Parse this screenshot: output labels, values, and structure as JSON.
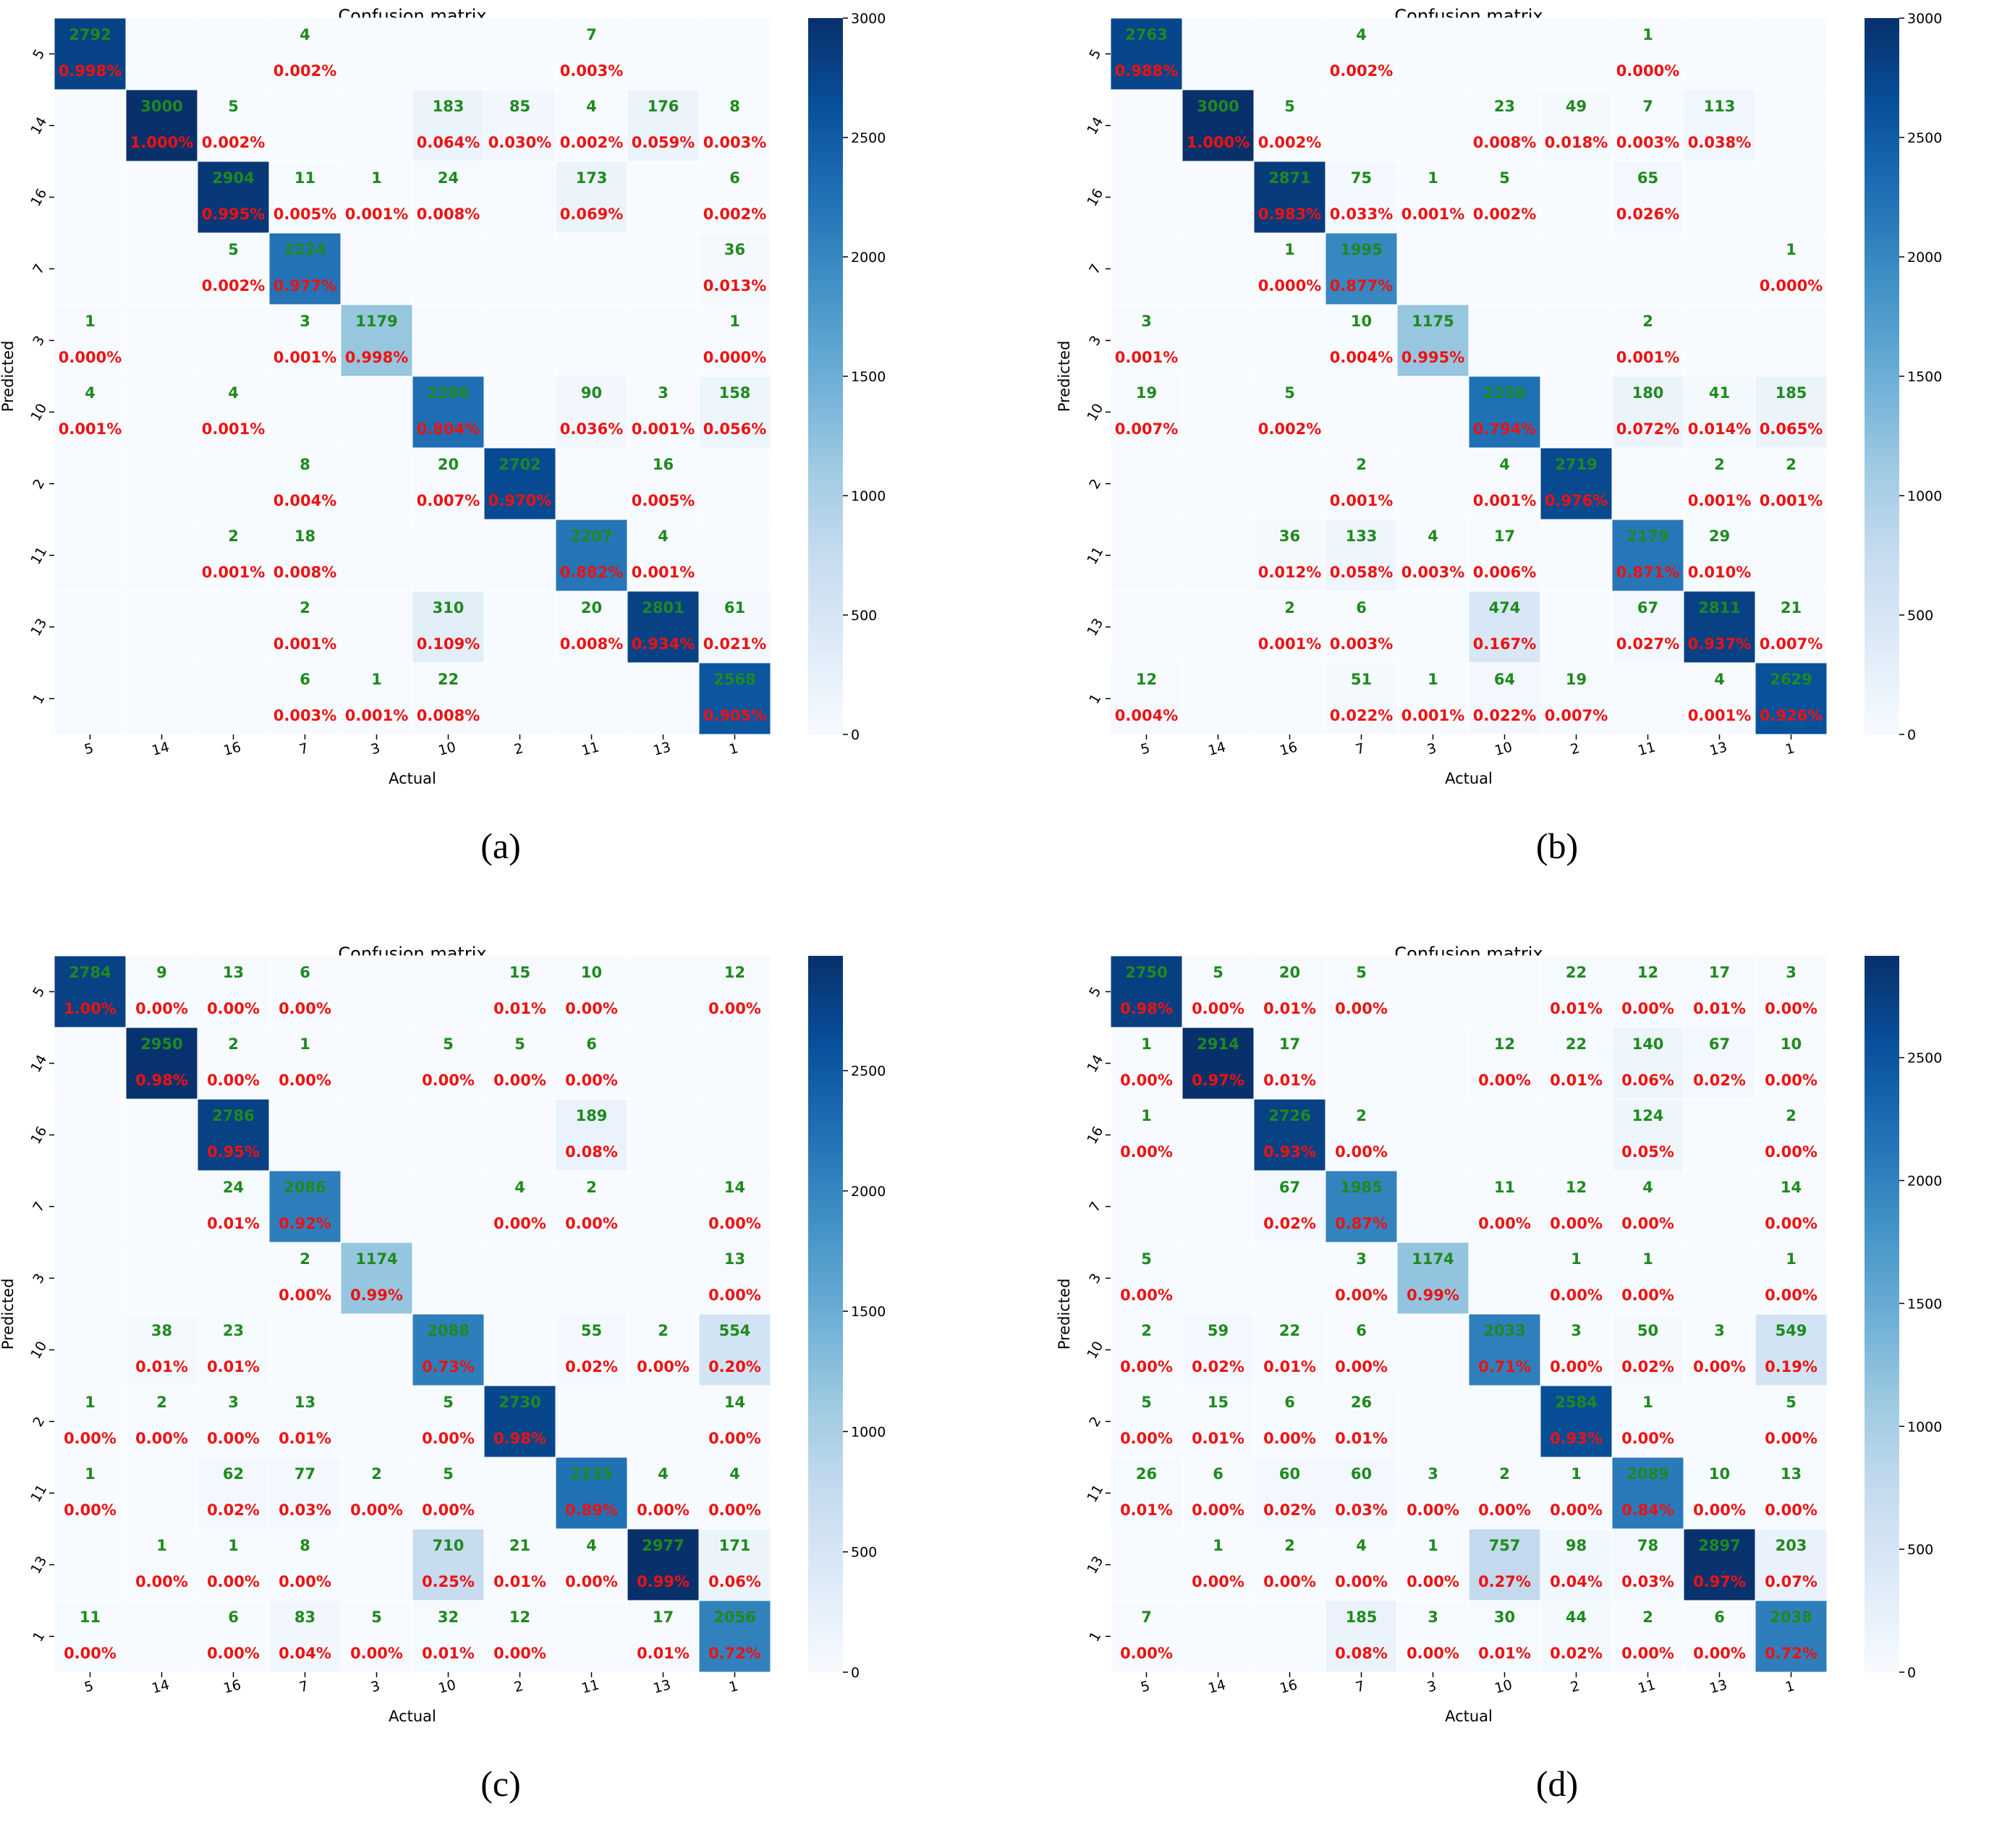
{
  "chart_data": [
    {
      "type": "heatmap",
      "panel_label": "(a)",
      "title": "Confusion matrix",
      "xlabel": "Actual",
      "ylabel": "Predicted",
      "x_categories": [
        "5",
        "14",
        "16",
        "7",
        "3",
        "10",
        "2",
        "11",
        "13",
        "1"
      ],
      "y_categories": [
        "5",
        "14",
        "16",
        "7",
        "3",
        "10",
        "2",
        "11",
        "13",
        "1"
      ],
      "colorbar": {
        "range": [
          0,
          3000
        ],
        "ticks": [
          "0",
          "500",
          "1000",
          "1500",
          "2000",
          "2500",
          "3000"
        ]
      },
      "counts": [
        [
          2792,
          0,
          0,
          4,
          0,
          0,
          0,
          7,
          0,
          0
        ],
        [
          0,
          3000,
          5,
          0,
          0,
          183,
          85,
          4,
          176,
          8
        ],
        [
          0,
          0,
          2904,
          11,
          1,
          24,
          0,
          173,
          0,
          6
        ],
        [
          0,
          0,
          5,
          2224,
          0,
          0,
          0,
          0,
          0,
          36
        ],
        [
          1,
          0,
          0,
          3,
          1179,
          0,
          0,
          0,
          0,
          1
        ],
        [
          4,
          0,
          4,
          0,
          0,
          2286,
          0,
          90,
          3,
          158
        ],
        [
          0,
          0,
          0,
          8,
          0,
          20,
          2702,
          0,
          16,
          0
        ],
        [
          0,
          0,
          2,
          18,
          0,
          0,
          0,
          2207,
          4,
          0
        ],
        [
          0,
          0,
          0,
          2,
          0,
          310,
          0,
          20,
          2801,
          61
        ],
        [
          0,
          0,
          0,
          6,
          1,
          22,
          0,
          0,
          0,
          2568
        ]
      ],
      "percents": [
        [
          "0.998%",
          "",
          "",
          "0.002%",
          "",
          "",
          "",
          "0.003%",
          "",
          ""
        ],
        [
          "",
          "1.000%",
          "0.002%",
          "",
          "",
          "0.064%",
          "0.030%",
          "0.002%",
          "0.059%",
          "0.003%"
        ],
        [
          "",
          "",
          "0.995%",
          "0.005%",
          "0.001%",
          "0.008%",
          "",
          "0.069%",
          "",
          "0.002%"
        ],
        [
          "",
          "",
          "0.002%",
          "0.977%",
          "",
          "",
          "",
          "",
          "",
          "0.013%"
        ],
        [
          "0.000%",
          "",
          "",
          "0.001%",
          "0.998%",
          "",
          "",
          "",
          "",
          "0.000%"
        ],
        [
          "0.001%",
          "",
          "0.001%",
          "",
          "",
          "0.804%",
          "",
          "0.036%",
          "0.001%",
          "0.056%"
        ],
        [
          "",
          "",
          "",
          "0.004%",
          "",
          "0.007%",
          "0.970%",
          "",
          "0.005%",
          ""
        ],
        [
          "",
          "",
          "0.001%",
          "0.008%",
          "",
          "",
          "",
          "0.882%",
          "0.001%",
          ""
        ],
        [
          "",
          "",
          "",
          "0.001%",
          "",
          "0.109%",
          "",
          "0.008%",
          "0.934%",
          "0.021%"
        ],
        [
          "",
          "",
          "",
          "0.003%",
          "0.001%",
          "0.008%",
          "",
          "",
          "",
          "0.905%"
        ]
      ]
    },
    {
      "type": "heatmap",
      "panel_label": "(b)",
      "title": "Confusion matrix",
      "xlabel": "Actual",
      "ylabel": "Predicted",
      "x_categories": [
        "5",
        "14",
        "16",
        "7",
        "3",
        "10",
        "2",
        "11",
        "13",
        "1"
      ],
      "y_categories": [
        "5",
        "14",
        "16",
        "7",
        "3",
        "10",
        "2",
        "11",
        "13",
        "1"
      ],
      "colorbar": {
        "range": [
          0,
          3000
        ],
        "ticks": [
          "0",
          "500",
          "1000",
          "1500",
          "2000",
          "2500",
          "3000"
        ]
      },
      "counts": [
        [
          2763,
          0,
          0,
          4,
          0,
          0,
          0,
          1,
          0,
          0
        ],
        [
          0,
          3000,
          5,
          0,
          0,
          23,
          49,
          7,
          113,
          0
        ],
        [
          0,
          0,
          2871,
          75,
          1,
          5,
          0,
          65,
          0,
          0
        ],
        [
          0,
          0,
          1,
          1995,
          0,
          0,
          0,
          0,
          0,
          1
        ],
        [
          3,
          0,
          0,
          10,
          1175,
          0,
          0,
          2,
          0,
          0
        ],
        [
          19,
          0,
          5,
          0,
          0,
          2258,
          0,
          180,
          41,
          185
        ],
        [
          0,
          0,
          0,
          2,
          0,
          4,
          2719,
          0,
          2,
          2
        ],
        [
          0,
          0,
          36,
          133,
          4,
          17,
          0,
          2179,
          29,
          0
        ],
        [
          0,
          0,
          2,
          6,
          0,
          474,
          0,
          67,
          2811,
          21
        ],
        [
          12,
          0,
          0,
          51,
          1,
          64,
          19,
          0,
          4,
          2629
        ]
      ],
      "percents": [
        [
          "0.988%",
          "",
          "",
          "0.002%",
          "",
          "",
          "",
          "0.000%",
          "",
          ""
        ],
        [
          "",
          "1.000%",
          "0.002%",
          "",
          "",
          "0.008%",
          "0.018%",
          "0.003%",
          "0.038%",
          ""
        ],
        [
          "",
          "",
          "0.983%",
          "0.033%",
          "0.001%",
          "0.002%",
          "",
          "0.026%",
          "",
          ""
        ],
        [
          "",
          "",
          "0.000%",
          "0.877%",
          "",
          "",
          "",
          "",
          "",
          "0.000%"
        ],
        [
          "0.001%",
          "",
          "",
          "0.004%",
          "0.995%",
          "",
          "",
          "0.001%",
          "",
          ""
        ],
        [
          "0.007%",
          "",
          "0.002%",
          "",
          "",
          "0.794%",
          "",
          "0.072%",
          "0.014%",
          "0.065%"
        ],
        [
          "",
          "",
          "",
          "0.001%",
          "",
          "0.001%",
          "0.976%",
          "",
          "0.001%",
          "0.001%"
        ],
        [
          "",
          "",
          "0.012%",
          "0.058%",
          "0.003%",
          "0.006%",
          "",
          "0.871%",
          "0.010%",
          ""
        ],
        [
          "",
          "",
          "0.001%",
          "0.003%",
          "",
          "0.167%",
          "",
          "0.027%",
          "0.937%",
          "0.007%"
        ],
        [
          "0.004%",
          "",
          "",
          "0.022%",
          "0.001%",
          "0.022%",
          "0.007%",
          "",
          "0.001%",
          "0.926%"
        ]
      ]
    },
    {
      "type": "heatmap",
      "panel_label": "(c)",
      "title": "Confusion matrix",
      "xlabel": "Actual",
      "ylabel": "Predicted",
      "x_categories": [
        "5",
        "14",
        "16",
        "7",
        "3",
        "10",
        "2",
        "11",
        "13",
        "1"
      ],
      "y_categories": [
        "5",
        "14",
        "16",
        "7",
        "3",
        "10",
        "2",
        "11",
        "13",
        "1"
      ],
      "colorbar": {
        "range": [
          0,
          2977
        ],
        "ticks": [
          "0",
          "500",
          "1000",
          "1500",
          "2000",
          "2500"
        ]
      },
      "counts": [
        [
          2784,
          9,
          13,
          6,
          0,
          0,
          15,
          10,
          0,
          12
        ],
        [
          0,
          2950,
          2,
          1,
          0,
          5,
          5,
          6,
          0,
          0
        ],
        [
          0,
          0,
          2786,
          0,
          0,
          0,
          0,
          189,
          0,
          0
        ],
        [
          0,
          0,
          24,
          2086,
          0,
          0,
          4,
          2,
          0,
          14
        ],
        [
          0,
          0,
          0,
          2,
          1174,
          0,
          0,
          0,
          0,
          13
        ],
        [
          0,
          38,
          23,
          0,
          0,
          2088,
          0,
          55,
          2,
          554
        ],
        [
          1,
          2,
          3,
          13,
          0,
          5,
          2730,
          0,
          0,
          14
        ],
        [
          1,
          0,
          62,
          77,
          2,
          5,
          0,
          2235,
          4,
          4
        ],
        [
          0,
          1,
          1,
          8,
          0,
          710,
          21,
          4,
          2977,
          171
        ],
        [
          11,
          0,
          6,
          83,
          5,
          32,
          12,
          0,
          17,
          2056
        ]
      ],
      "percents": [
        [
          "1.00%",
          "0.00%",
          "0.00%",
          "0.00%",
          "",
          "",
          "0.01%",
          "0.00%",
          "",
          "0.00%"
        ],
        [
          "",
          "0.98%",
          "0.00%",
          "0.00%",
          "",
          "0.00%",
          "0.00%",
          "0.00%",
          "",
          ""
        ],
        [
          "",
          "",
          "0.95%",
          "",
          "",
          "",
          "",
          "0.08%",
          "",
          ""
        ],
        [
          "",
          "",
          "0.01%",
          "0.92%",
          "",
          "",
          "0.00%",
          "0.00%",
          "",
          "0.00%"
        ],
        [
          "",
          "",
          "",
          "0.00%",
          "0.99%",
          "",
          "",
          "",
          "",
          "0.00%"
        ],
        [
          "",
          "0.01%",
          "0.01%",
          "",
          "",
          "0.73%",
          "",
          "0.02%",
          "0.00%",
          "0.20%"
        ],
        [
          "0.00%",
          "0.00%",
          "0.00%",
          "0.01%",
          "",
          "0.00%",
          "0.98%",
          "",
          "",
          "0.00%"
        ],
        [
          "0.00%",
          "",
          "0.02%",
          "0.03%",
          "0.00%",
          "0.00%",
          "",
          "0.89%",
          "0.00%",
          "0.00%"
        ],
        [
          "",
          "0.00%",
          "0.00%",
          "0.00%",
          "",
          "0.25%",
          "0.01%",
          "0.00%",
          "0.99%",
          "0.06%"
        ],
        [
          "0.00%",
          "",
          "0.00%",
          "0.04%",
          "0.00%",
          "0.01%",
          "0.00%",
          "",
          "0.01%",
          "0.72%"
        ]
      ]
    },
    {
      "type": "heatmap",
      "panel_label": "(d)",
      "title": "Confusion matrix",
      "xlabel": "Actual",
      "ylabel": "Predicted",
      "x_categories": [
        "5",
        "14",
        "16",
        "7",
        "3",
        "10",
        "2",
        "11",
        "13",
        "1"
      ],
      "y_categories": [
        "5",
        "14",
        "16",
        "7",
        "3",
        "10",
        "2",
        "11",
        "13",
        "1"
      ],
      "colorbar": {
        "range": [
          0,
          2914
        ],
        "ticks": [
          "0",
          "500",
          "1000",
          "1500",
          "2000",
          "2500"
        ]
      },
      "counts": [
        [
          2750,
          5,
          20,
          5,
          0,
          0,
          22,
          12,
          17,
          3
        ],
        [
          1,
          2914,
          17,
          0,
          0,
          12,
          22,
          140,
          67,
          10
        ],
        [
          1,
          0,
          2726,
          2,
          0,
          0,
          0,
          124,
          0,
          2
        ],
        [
          0,
          0,
          67,
          1985,
          0,
          11,
          12,
          4,
          0,
          14
        ],
        [
          5,
          0,
          0,
          3,
          1174,
          0,
          1,
          1,
          0,
          1
        ],
        [
          2,
          59,
          22,
          6,
          0,
          2033,
          3,
          50,
          3,
          549
        ],
        [
          5,
          15,
          6,
          26,
          0,
          0,
          2584,
          1,
          0,
          5
        ],
        [
          26,
          6,
          60,
          60,
          3,
          2,
          1,
          2089,
          10,
          13
        ],
        [
          0,
          1,
          2,
          4,
          1,
          757,
          98,
          78,
          2897,
          203
        ],
        [
          7,
          0,
          0,
          185,
          3,
          30,
          44,
          2,
          6,
          2038
        ]
      ],
      "percents": [
        [
          "0.98%",
          "0.00%",
          "0.01%",
          "0.00%",
          "",
          "",
          "0.01%",
          "0.00%",
          "0.01%",
          "0.00%"
        ],
        [
          "0.00%",
          "0.97%",
          "0.01%",
          "",
          "",
          "0.00%",
          "0.01%",
          "0.06%",
          "0.02%",
          "0.00%"
        ],
        [
          "0.00%",
          "",
          "0.93%",
          "0.00%",
          "",
          "",
          "",
          "0.05%",
          "",
          "0.00%"
        ],
        [
          "",
          "",
          "0.02%",
          "0.87%",
          "",
          "0.00%",
          "0.00%",
          "0.00%",
          "",
          "0.00%"
        ],
        [
          "0.00%",
          "",
          "",
          "0.00%",
          "0.99%",
          "",
          "0.00%",
          "0.00%",
          "",
          "0.00%"
        ],
        [
          "0.00%",
          "0.02%",
          "0.01%",
          "0.00%",
          "",
          "0.71%",
          "0.00%",
          "0.02%",
          "0.00%",
          "0.19%"
        ],
        [
          "0.00%",
          "0.01%",
          "0.00%",
          "0.01%",
          "",
          "",
          "0.93%",
          "0.00%",
          "",
          "0.00%"
        ],
        [
          "0.01%",
          "0.00%",
          "0.02%",
          "0.03%",
          "0.00%",
          "0.00%",
          "0.00%",
          "0.84%",
          "0.00%",
          "0.00%"
        ],
        [
          "",
          "0.00%",
          "0.00%",
          "0.00%",
          "0.00%",
          "0.27%",
          "0.04%",
          "0.03%",
          "0.97%",
          "0.07%"
        ],
        [
          "0.00%",
          "",
          "",
          "0.08%",
          "0.00%",
          "0.01%",
          "0.02%",
          "0.00%",
          "0.00%",
          "0.72%"
        ]
      ]
    }
  ]
}
